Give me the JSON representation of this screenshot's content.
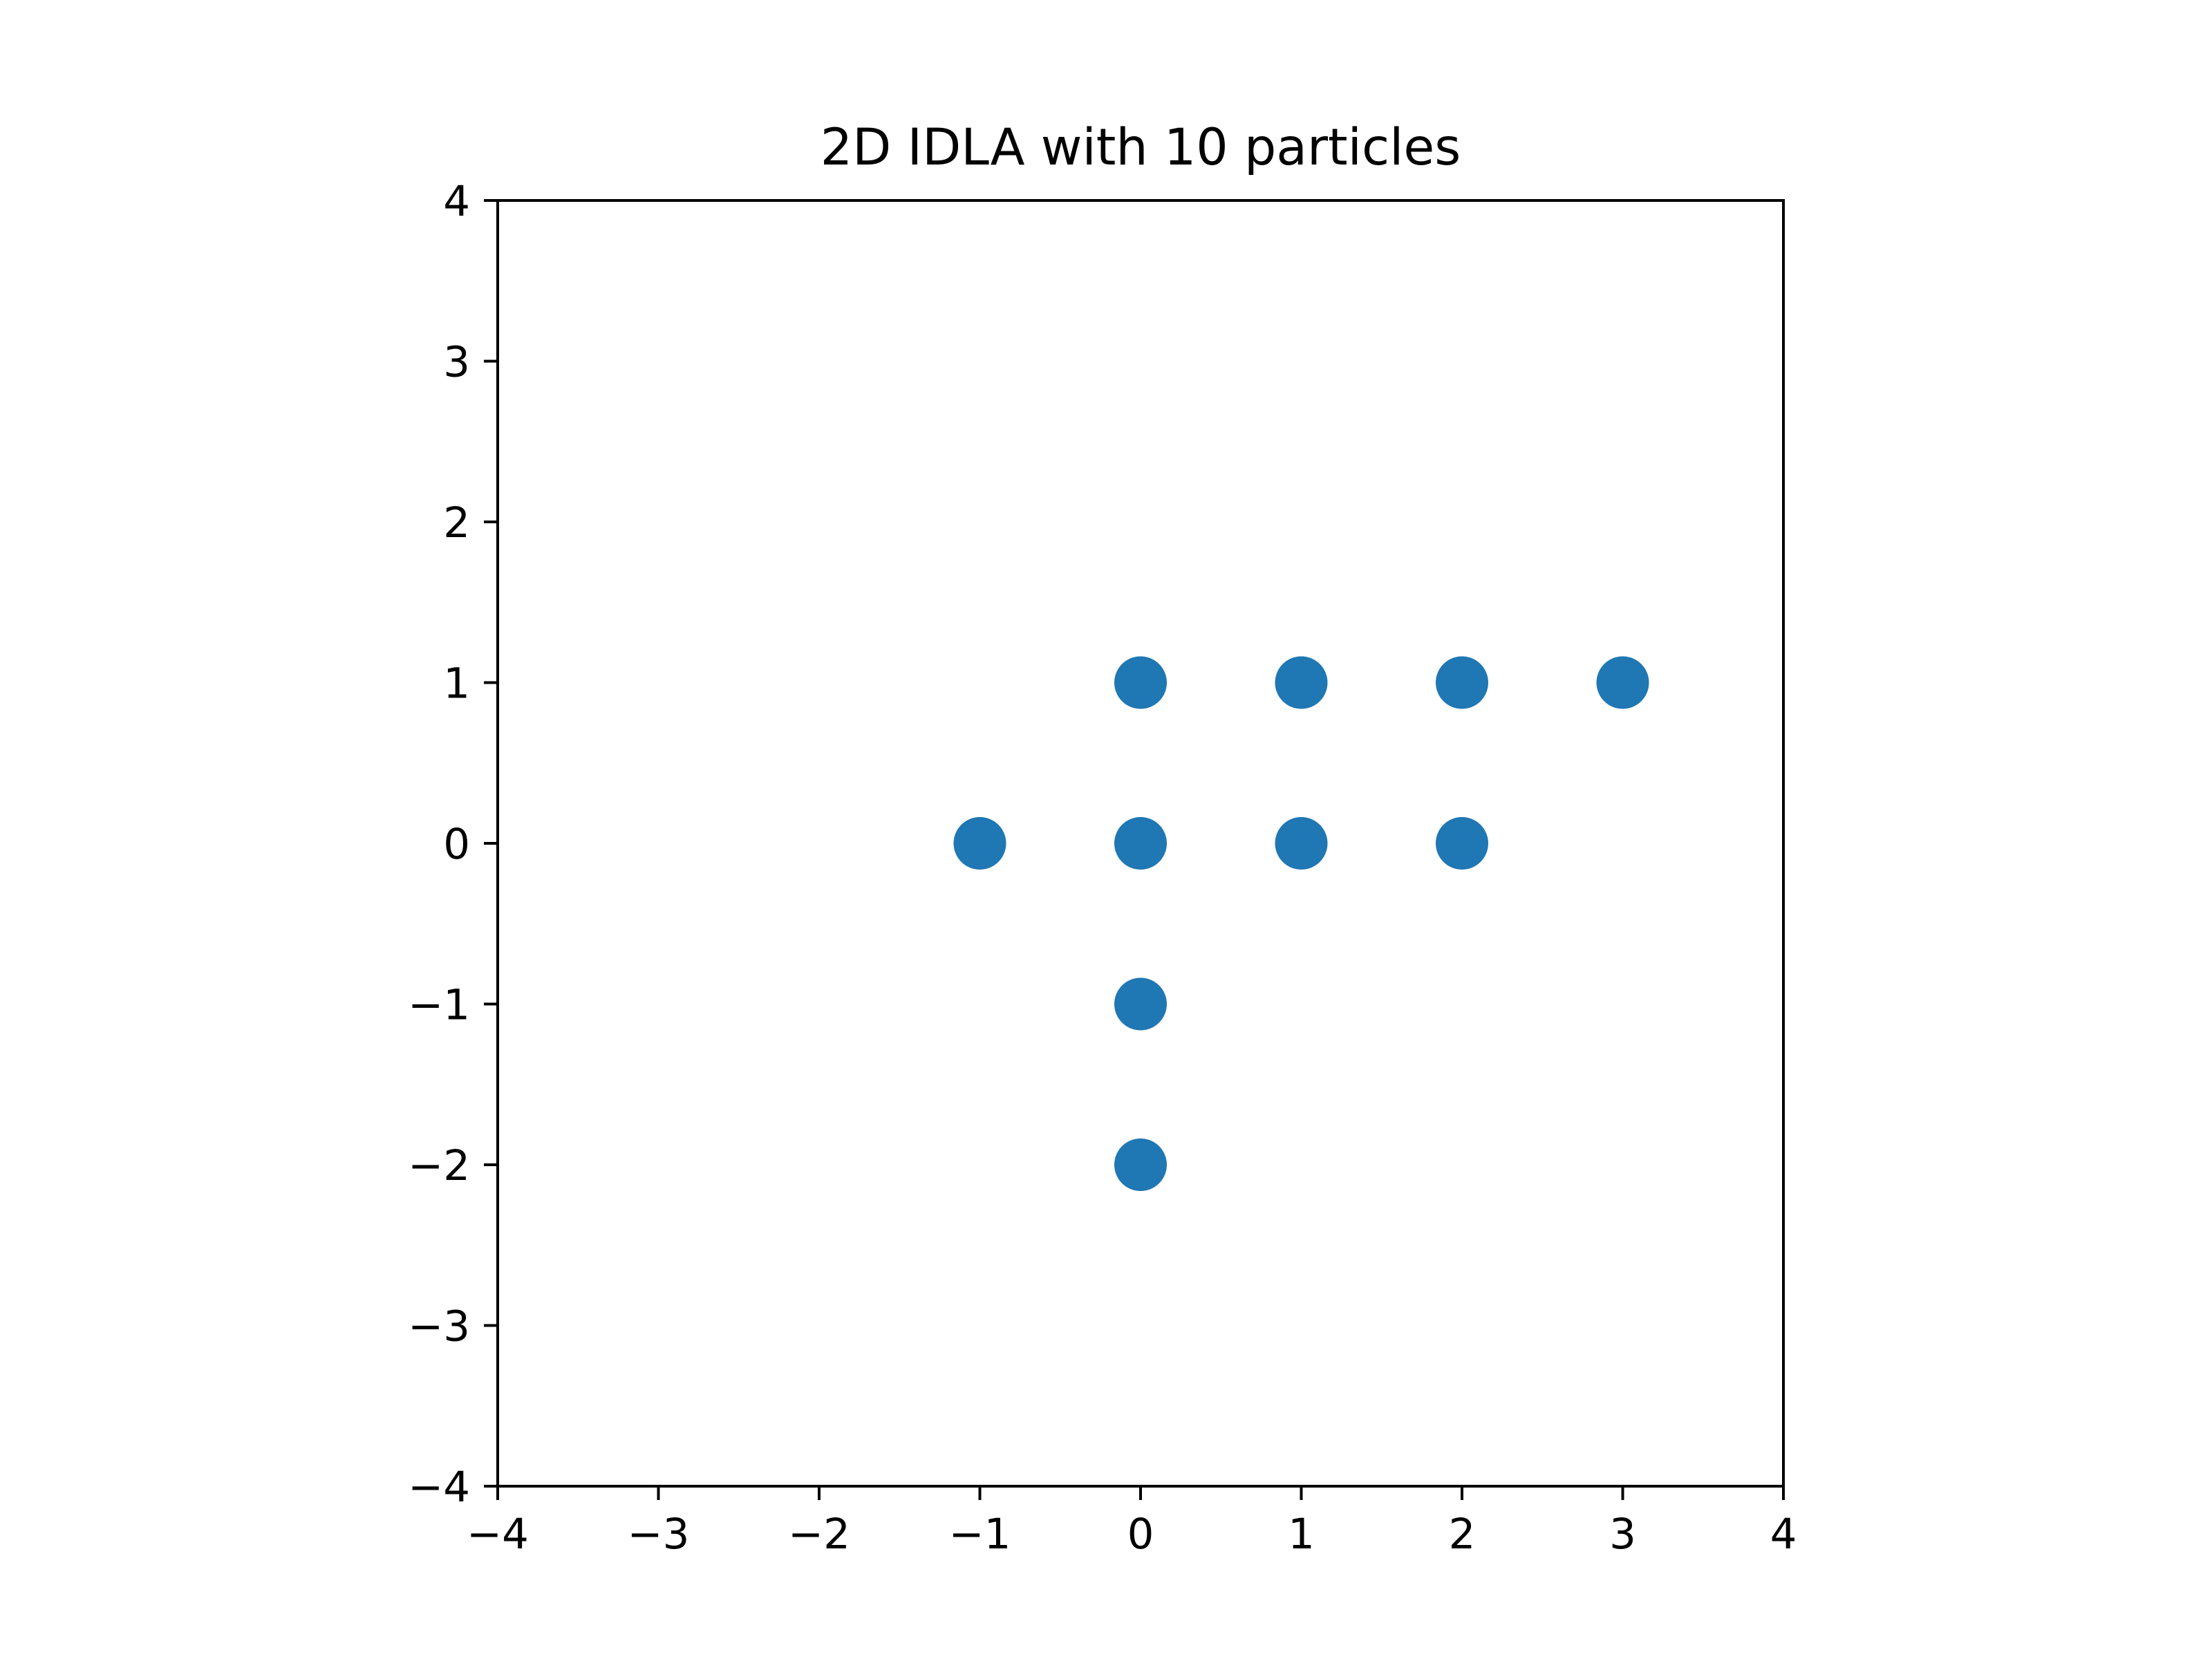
{
  "chart_data": {
    "type": "scatter",
    "title": "2D IDLA with 10 particles",
    "xlabel": "",
    "ylabel": "",
    "xlim": [
      -4,
      4
    ],
    "ylim": [
      -4,
      4
    ],
    "xticks": [
      -4,
      -3,
      -2,
      -1,
      0,
      1,
      2,
      3,
      4
    ],
    "yticks": [
      -4,
      -3,
      -2,
      -1,
      0,
      1,
      2,
      3,
      4
    ],
    "xtick_labels": [
      "−4",
      "−3",
      "−2",
      "−1",
      "0",
      "1",
      "2",
      "3",
      "4"
    ],
    "ytick_labels": [
      "−4",
      "−3",
      "−2",
      "−1",
      "0",
      "1",
      "2",
      "3",
      "4"
    ],
    "grid": false,
    "marker_color": "#1f77b4",
    "points": [
      {
        "x": 0,
        "y": 1
      },
      {
        "x": 1,
        "y": 1
      },
      {
        "x": 2,
        "y": 1
      },
      {
        "x": 3,
        "y": 1
      },
      {
        "x": -1,
        "y": 0
      },
      {
        "x": 0,
        "y": 0
      },
      {
        "x": 1,
        "y": 0
      },
      {
        "x": 2,
        "y": 0
      },
      {
        "x": 0,
        "y": -1
      },
      {
        "x": 0,
        "y": -2
      }
    ]
  }
}
